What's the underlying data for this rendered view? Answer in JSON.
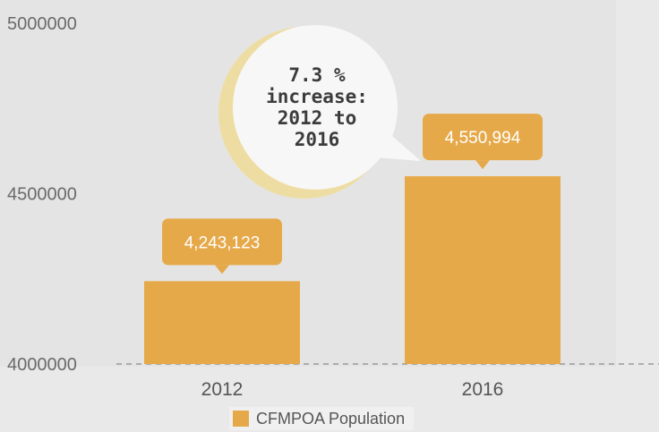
{
  "chart_data": {
    "type": "bar",
    "categories": [
      "2012",
      "2016"
    ],
    "series": [
      {
        "name": "CFMPOA Population",
        "values": [
          4243123,
          4550994
        ]
      }
    ],
    "data_labels": [
      "4,243,123",
      "4,550,994"
    ],
    "ylim": [
      4000000,
      5000000
    ],
    "yticks": [
      "4000000",
      "4500000",
      "5000000"
    ],
    "legend_position": "bottom",
    "callout": {
      "lines": [
        "7.3 %",
        "increase:",
        "2012 to",
        "2016"
      ]
    },
    "colors": {
      "bar": "#e6a94a",
      "callout_fill": "#f7f7f7",
      "callout_glow": "#f0dc98",
      "axis_dash": "#9a9a9a"
    }
  }
}
